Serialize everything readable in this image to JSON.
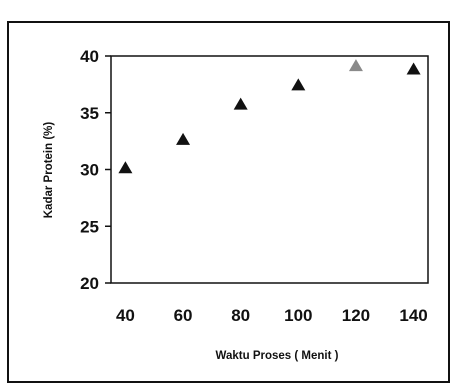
{
  "chart_data": {
    "type": "scatter",
    "xlabel": "Waktu Proses ( Menit )",
    "ylabel": "Kadar Protein (%)",
    "x_ticks": [
      "40",
      "60",
      "80",
      "100",
      "120",
      "140"
    ],
    "y_ticks": [
      "20",
      "25",
      "30",
      "35",
      "40"
    ],
    "xlim": [
      35,
      145
    ],
    "ylim": [
      20,
      40
    ],
    "marker": "triangle",
    "series": [
      {
        "points": [
          {
            "x": 40,
            "y": 30.2,
            "color": "#111111"
          },
          {
            "x": 60,
            "y": 32.7,
            "color": "#111111"
          },
          {
            "x": 80,
            "y": 35.8,
            "color": "#111111"
          },
          {
            "x": 100,
            "y": 37.5,
            "color": "#111111"
          },
          {
            "x": 120,
            "y": 39.2,
            "color": "#8a8a8a"
          },
          {
            "x": 140,
            "y": 38.9,
            "color": "#111111"
          }
        ]
      }
    ]
  }
}
